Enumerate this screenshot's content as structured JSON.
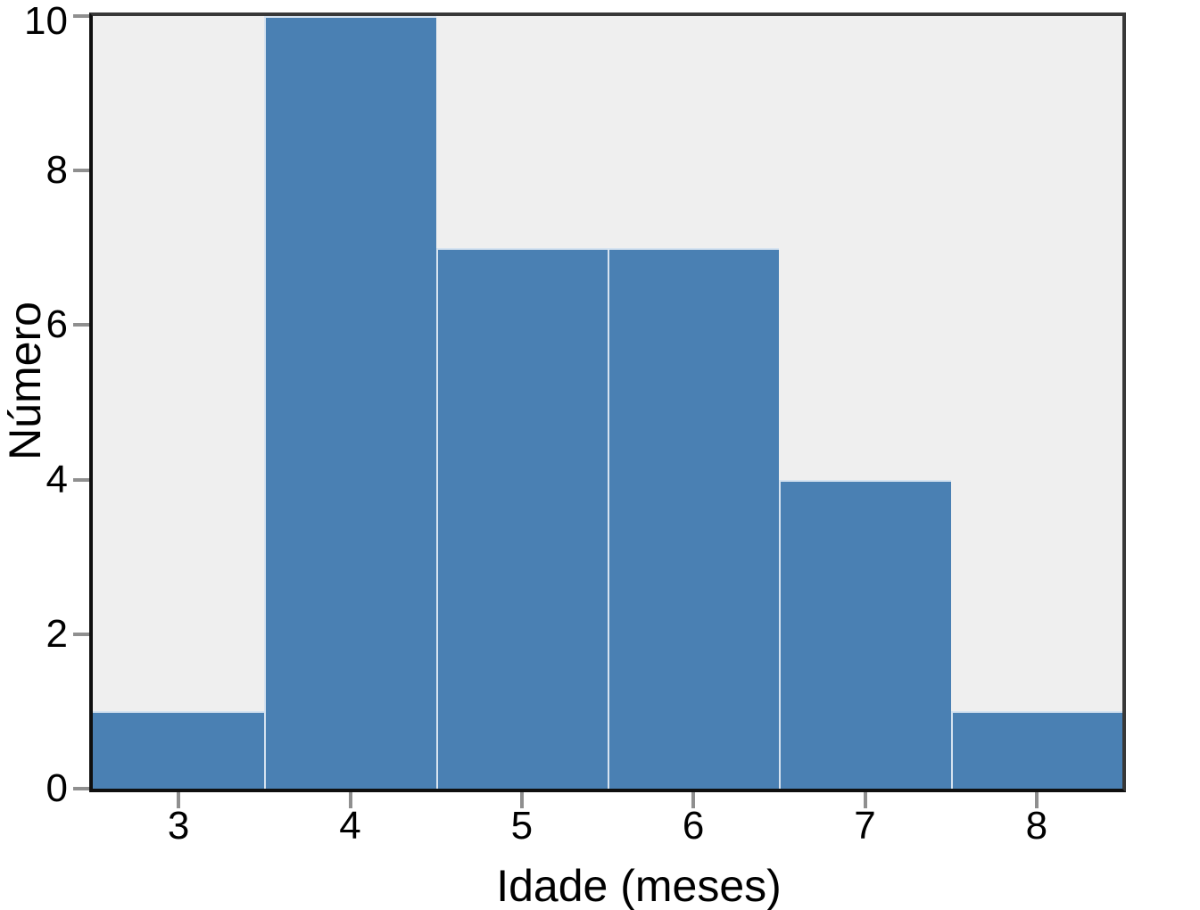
{
  "chart_data": {
    "type": "bar",
    "subtype": "histogram",
    "title": "",
    "xlabel": "Idade (meses)",
    "ylabel": "Número",
    "categories": [
      3,
      4,
      5,
      6,
      7,
      8
    ],
    "values": [
      1,
      10,
      7,
      7,
      4,
      1
    ],
    "bin_width": 1,
    "xlim": [
      2.5,
      8.5
    ],
    "ylim": [
      0,
      10
    ],
    "x_tick_labels": [
      "3",
      "4",
      "5",
      "6",
      "7",
      "8"
    ],
    "y_tick_labels": [
      "0",
      "2",
      "4",
      "6",
      "8",
      "10"
    ],
    "x_tick_values": [
      3,
      4,
      5,
      6,
      7,
      8
    ],
    "y_tick_values": [
      0,
      2,
      4,
      6,
      8,
      10
    ],
    "grid": false,
    "legend": null
  },
  "colors": {
    "bar_fill": "#4a80b3",
    "bar_edge": "#d6e3f0",
    "plot_background": "#efefef",
    "figure_background": "#ffffff",
    "axis_line": "#0f0f0f",
    "frame_line": "#383838",
    "tick_mark": "#8f8f8f",
    "text": "#000000"
  }
}
